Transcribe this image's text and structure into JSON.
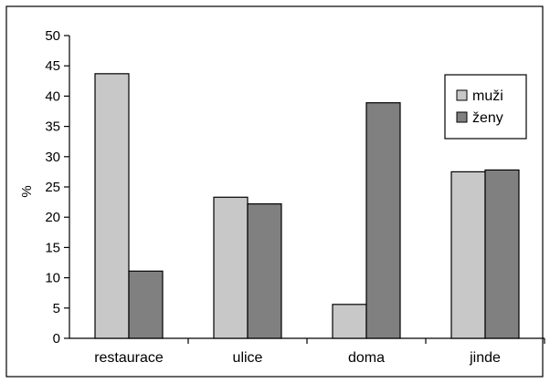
{
  "chart_data": {
    "type": "bar",
    "categories": [
      "restaurace",
      "ulice",
      "doma",
      "jinde"
    ],
    "series": [
      {
        "name": "muži",
        "values": [
          43.7,
          23.3,
          5.6,
          27.5
        ],
        "color": "#c8c8c8"
      },
      {
        "name": "ženy",
        "values": [
          11.1,
          22.2,
          38.9,
          27.8
        ],
        "color": "#808080"
      }
    ],
    "title": "",
    "xlabel": "",
    "ylabel": "%",
    "ylim": [
      0,
      50
    ],
    "ytick_step": 5,
    "grid": false,
    "legend_position": "top-right"
  }
}
